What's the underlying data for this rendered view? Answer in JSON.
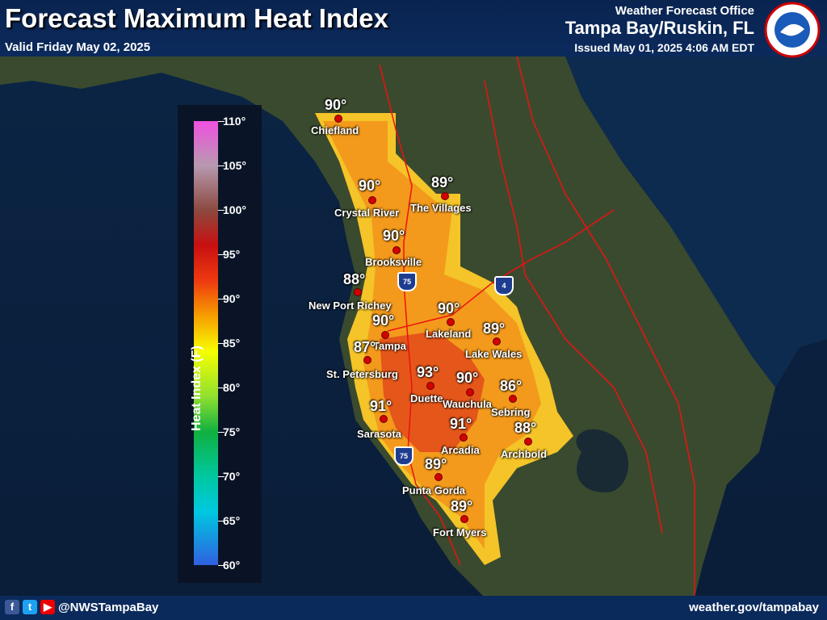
{
  "header": {
    "title": "Forecast Maximum Heat Index",
    "valid": "Valid Friday May 02, 2025",
    "office_label": "Weather Forecast Office",
    "office_name": "Tampa Bay/Ruskin, FL",
    "issued": "Issued May 01, 2025 4:06 AM EDT"
  },
  "legend": {
    "axis_label": "Heat Index (F)",
    "ticks": [
      "110°",
      "105°",
      "100°",
      "95°",
      "90°",
      "85°",
      "80°",
      "75°",
      "70°",
      "65°",
      "60°"
    ]
  },
  "cities": [
    {
      "name": "Chiefland",
      "value": "90°"
    },
    {
      "name": "Crystal River",
      "value": "90°"
    },
    {
      "name": "The Villages",
      "value": "89°"
    },
    {
      "name": "Brooksville",
      "value": "90°"
    },
    {
      "name": "New Port Richey",
      "value": "88°"
    },
    {
      "name": "Lakeland",
      "value": "90°"
    },
    {
      "name": "Tampa",
      "value": "90°"
    },
    {
      "name": "Lake Wales",
      "value": "89°"
    },
    {
      "name": "St. Petersburg",
      "value": "87°"
    },
    {
      "name": "Duette",
      "value": "93°"
    },
    {
      "name": "Wauchula",
      "value": "90°"
    },
    {
      "name": "Sebring",
      "value": "86°"
    },
    {
      "name": "Sarasota",
      "value": "91°"
    },
    {
      "name": "Arcadia",
      "value": "91°"
    },
    {
      "name": "Archbold",
      "value": "88°"
    },
    {
      "name": "Punta Gorda",
      "value": "89°"
    },
    {
      "name": "Fort Myers",
      "value": "89°"
    }
  ],
  "highways": [
    {
      "name": "I-75 shield",
      "label": "75"
    },
    {
      "name": "I-4 shield",
      "label": "4"
    },
    {
      "name": "I-75 south shield",
      "label": "75"
    }
  ],
  "footer": {
    "handle": "@NWSTampaBay",
    "site": "weather.gov/tampabay"
  },
  "colors": {
    "header_bg": "#0b2a5c",
    "city_dot": "#d40000",
    "heat_orange": "#f5a018",
    "heat_red": "#e84a12",
    "heat_yellow": "#f6d020"
  }
}
